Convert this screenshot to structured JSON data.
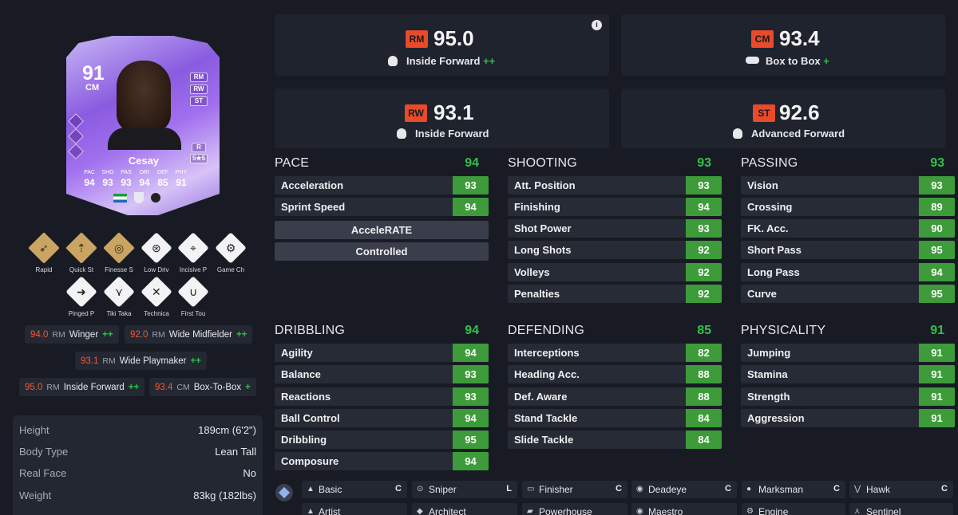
{
  "card": {
    "rating": "91",
    "position": "CM",
    "name": "Cesay",
    "alt_positions": [
      "RM",
      "RW",
      "ST"
    ],
    "skill_foot": "R",
    "skill_weak": "5★5",
    "stats": [
      {
        "label": "PAC",
        "value": "94"
      },
      {
        "label": "SHO",
        "value": "93"
      },
      {
        "label": "PAS",
        "value": "93"
      },
      {
        "label": "DRI",
        "value": "94"
      },
      {
        "label": "DEF",
        "value": "85"
      },
      {
        "label": "PHY",
        "value": "91"
      }
    ]
  },
  "playstyles": [
    {
      "label": "Rapid",
      "icon": "rapid-icon"
    },
    {
      "label": "Quick St",
      "icon": "quick-step-icon"
    },
    {
      "label": "Finesse S",
      "icon": "finesse-shot-icon"
    },
    {
      "label": "Low Driv",
      "icon": "low-driven-shot-icon"
    },
    {
      "label": "Incisive P",
      "icon": "incisive-pass-icon"
    },
    {
      "label": "Game Ch",
      "icon": "game-changer-icon"
    },
    {
      "label": "Pinged P",
      "icon": "pinged-pass-icon"
    },
    {
      "label": "Tiki Taka",
      "icon": "tiki-taka-icon"
    },
    {
      "label": "Technica",
      "icon": "technical-icon"
    },
    {
      "label": "First Tou",
      "icon": "first-touch-icon"
    }
  ],
  "role_chips": [
    {
      "value": "94.0",
      "pos": "RM",
      "name": "Winger",
      "plus": "++"
    },
    {
      "value": "92.0",
      "pos": "RM",
      "name": "Wide Midfielder",
      "plus": "++"
    },
    {
      "value": "93.1",
      "pos": "RM",
      "name": "Wide Playmaker",
      "plus": "++"
    },
    {
      "value": "95.0",
      "pos": "RM",
      "name": "Inside Forward",
      "plus": "++"
    },
    {
      "value": "93.4",
      "pos": "CM",
      "name": "Box-To-Box",
      "plus": "+"
    }
  ],
  "info": [
    {
      "label": "Height",
      "value": "189cm (6'2\")"
    },
    {
      "label": "Body Type",
      "value": "Lean Tall"
    },
    {
      "label": "Real Face",
      "value": "No"
    },
    {
      "label": "Weight",
      "value": "83kg (182lbs)"
    }
  ],
  "roles": [
    {
      "pos": "RM",
      "score": "95.0",
      "name": "Inside Forward",
      "plus": "++"
    },
    {
      "pos": "CM",
      "score": "93.4",
      "name": "Box to Box",
      "plus": "+"
    },
    {
      "pos": "RW",
      "score": "93.1",
      "name": "Inside Forward",
      "plus": ""
    },
    {
      "pos": "ST",
      "score": "92.6",
      "name": "Advanced Forward",
      "plus": ""
    }
  ],
  "info_icon": "i",
  "groups": {
    "pace": {
      "title": "PACE",
      "value": "94",
      "attrs": [
        {
          "name": "Acceleration",
          "value": "93"
        },
        {
          "name": "Sprint Speed",
          "value": "94"
        }
      ],
      "traits": [
        "AcceleRATE",
        "Controlled"
      ]
    },
    "shooting": {
      "title": "SHOOTING",
      "value": "93",
      "attrs": [
        {
          "name": "Att. Position",
          "value": "93"
        },
        {
          "name": "Finishing",
          "value": "94"
        },
        {
          "name": "Shot Power",
          "value": "93"
        },
        {
          "name": "Long Shots",
          "value": "92"
        },
        {
          "name": "Volleys",
          "value": "92"
        },
        {
          "name": "Penalties",
          "value": "92"
        }
      ]
    },
    "passing": {
      "title": "PASSING",
      "value": "93",
      "attrs": [
        {
          "name": "Vision",
          "value": "93"
        },
        {
          "name": "Crossing",
          "value": "89"
        },
        {
          "name": "FK. Acc.",
          "value": "90"
        },
        {
          "name": "Short Pass",
          "value": "95"
        },
        {
          "name": "Long Pass",
          "value": "94"
        },
        {
          "name": "Curve",
          "value": "95"
        }
      ]
    },
    "dribbling": {
      "title": "DRIBBLING",
      "value": "94",
      "attrs": [
        {
          "name": "Agility",
          "value": "94"
        },
        {
          "name": "Balance",
          "value": "93"
        },
        {
          "name": "Reactions",
          "value": "93"
        },
        {
          "name": "Ball Control",
          "value": "94"
        },
        {
          "name": "Dribbling",
          "value": "95"
        },
        {
          "name": "Composure",
          "value": "94"
        }
      ]
    },
    "defending": {
      "title": "DEFENDING",
      "value": "85",
      "attrs": [
        {
          "name": "Interceptions",
          "value": "82"
        },
        {
          "name": "Heading Acc.",
          "value": "88"
        },
        {
          "name": "Def. Aware",
          "value": "88"
        },
        {
          "name": "Stand Tackle",
          "value": "84"
        },
        {
          "name": "Slide Tackle",
          "value": "84"
        }
      ]
    },
    "physicality": {
      "title": "PHYSICALITY",
      "value": "91",
      "attrs": [
        {
          "name": "Jumping",
          "value": "91"
        },
        {
          "name": "Stamina",
          "value": "91"
        },
        {
          "name": "Strength",
          "value": "91"
        },
        {
          "name": "Aggression",
          "value": "91"
        }
      ]
    }
  },
  "chem_styles": [
    {
      "name": "Basic",
      "pos": "C",
      "icon": "basic-icon"
    },
    {
      "name": "Sniper",
      "pos": "L",
      "icon": "sniper-icon"
    },
    {
      "name": "Finisher",
      "pos": "C",
      "icon": "finisher-icon"
    },
    {
      "name": "Deadeye",
      "pos": "C",
      "icon": "deadeye-icon"
    },
    {
      "name": "Marksman",
      "pos": "C",
      "icon": "marksman-icon"
    },
    {
      "name": "Hawk",
      "pos": "C",
      "icon": "hawk-icon"
    },
    {
      "name": "Artist",
      "pos": "",
      "icon": "artist-icon"
    },
    {
      "name": "Architect",
      "pos": "",
      "icon": "architect-icon"
    },
    {
      "name": "Powerhouse",
      "pos": "",
      "icon": "powerhouse-icon"
    },
    {
      "name": "Maestro",
      "pos": "",
      "icon": "maestro-icon"
    },
    {
      "name": "Engine",
      "pos": "",
      "icon": "engine-icon"
    },
    {
      "name": "Sentinel",
      "pos": "",
      "icon": "sentinel-icon"
    }
  ],
  "colors": {
    "accent_red": "#e84a2a",
    "stat_green": "#3d9b3a",
    "plus_green": "#32c04a"
  }
}
